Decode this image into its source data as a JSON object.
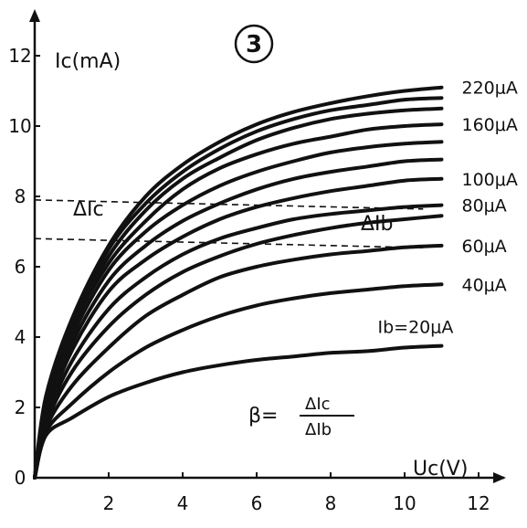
{
  "badge": "3",
  "chart_data": {
    "type": "line",
    "ylabel": "Ic(mA)",
    "xlabel": "Uc(V)",
    "xlim": [
      0,
      12.6
    ],
    "ylim": [
      0,
      13
    ],
    "xticks": [
      "2",
      "4",
      "6",
      "8",
      "10",
      "12"
    ],
    "yticks": [
      "0",
      "2",
      "4",
      "6",
      "8",
      "10",
      "12"
    ],
    "series": [
      {
        "name": "Ib=20μA",
        "x": [
          0,
          0.3,
          1,
          2,
          3,
          4,
          5,
          6,
          7,
          8,
          9,
          10,
          11
        ],
        "y": [
          0,
          1.2,
          1.7,
          2.3,
          2.7,
          3.0,
          3.2,
          3.35,
          3.45,
          3.55,
          3.6,
          3.7,
          3.75
        ]
      },
      {
        "name": "40μA",
        "x": [
          0,
          0.3,
          1,
          2,
          3,
          4,
          5,
          6,
          7,
          8,
          9,
          10,
          11
        ],
        "y": [
          0,
          1.3,
          2.1,
          3.0,
          3.7,
          4.2,
          4.6,
          4.9,
          5.1,
          5.25,
          5.35,
          5.45,
          5.5
        ]
      },
      {
        "name": "60μA",
        "x": [
          0,
          0.3,
          1,
          2,
          3,
          4,
          5,
          6,
          7,
          8,
          9,
          10,
          11
        ],
        "y": [
          0,
          1.4,
          2.6,
          3.7,
          4.6,
          5.2,
          5.7,
          6.0,
          6.2,
          6.35,
          6.45,
          6.55,
          6.6
        ]
      },
      {
        "name": "",
        "x": [
          0,
          0.3,
          1,
          2,
          3,
          4,
          5,
          6,
          7,
          8,
          9,
          10,
          11
        ],
        "y": [
          0,
          1.5,
          3.0,
          4.3,
          5.2,
          5.85,
          6.3,
          6.65,
          6.9,
          7.1,
          7.25,
          7.35,
          7.45
        ]
      },
      {
        "name": "80μA",
        "x": [
          0,
          0.3,
          1,
          2,
          3,
          4,
          5,
          6,
          7,
          8,
          9,
          10,
          11
        ],
        "y": [
          0,
          1.6,
          3.3,
          4.8,
          5.7,
          6.35,
          6.8,
          7.1,
          7.35,
          7.5,
          7.6,
          7.7,
          7.75
        ]
      },
      {
        "name": "100μA",
        "x": [
          0,
          0.3,
          1,
          2,
          3,
          4,
          5,
          6,
          7,
          8,
          9,
          10,
          11
        ],
        "y": [
          0,
          1.7,
          3.6,
          5.3,
          6.2,
          6.85,
          7.35,
          7.7,
          7.95,
          8.15,
          8.3,
          8.45,
          8.5
        ]
      },
      {
        "name": "",
        "x": [
          0,
          0.3,
          1,
          2,
          3,
          4,
          5,
          6,
          7,
          8,
          9,
          10,
          11
        ],
        "y": [
          0,
          1.8,
          3.8,
          5.6,
          6.6,
          7.3,
          7.8,
          8.2,
          8.5,
          8.7,
          8.85,
          9.0,
          9.05
        ]
      },
      {
        "name": "",
        "x": [
          0,
          0.3,
          1,
          2,
          3,
          4,
          5,
          6,
          7,
          8,
          9,
          10,
          11
        ],
        "y": [
          0,
          1.9,
          4.0,
          5.9,
          7.0,
          7.75,
          8.3,
          8.7,
          9.0,
          9.25,
          9.4,
          9.5,
          9.55
        ]
      },
      {
        "name": "160μA",
        "x": [
          0,
          0.3,
          1,
          2,
          3,
          4,
          5,
          6,
          7,
          8,
          9,
          10,
          11
        ],
        "y": [
          0,
          2.0,
          4.2,
          6.1,
          7.3,
          8.2,
          8.8,
          9.2,
          9.5,
          9.7,
          9.9,
          10.0,
          10.05
        ]
      },
      {
        "name": "",
        "x": [
          0,
          0.3,
          1,
          2,
          3,
          4,
          5,
          6,
          7,
          8,
          9,
          10,
          11
        ],
        "y": [
          0,
          2.1,
          4.3,
          6.3,
          7.6,
          8.5,
          9.1,
          9.6,
          9.95,
          10.2,
          10.35,
          10.45,
          10.5
        ]
      },
      {
        "name": "",
        "x": [
          0,
          0.3,
          1,
          2,
          3,
          4,
          5,
          6,
          7,
          8,
          9,
          10,
          11
        ],
        "y": [
          0,
          2.2,
          4.4,
          6.5,
          7.8,
          8.7,
          9.35,
          9.85,
          10.2,
          10.45,
          10.6,
          10.75,
          10.8
        ]
      },
      {
        "name": "220μA",
        "x": [
          0,
          0.3,
          1,
          2,
          3,
          4,
          5,
          6,
          7,
          8,
          9,
          10,
          11
        ],
        "y": [
          0,
          2.3,
          4.5,
          6.6,
          8.0,
          8.9,
          9.55,
          10.05,
          10.4,
          10.65,
          10.85,
          11.0,
          11.1
        ]
      }
    ],
    "annotations": {
      "delta_ic": "ΔIc",
      "delta_ib": "ΔIb",
      "dashed_levels": [
        7.9,
        6.8
      ],
      "formula_lhs": "β=",
      "formula_num": "ΔIc",
      "formula_den": "ΔIb"
    }
  }
}
